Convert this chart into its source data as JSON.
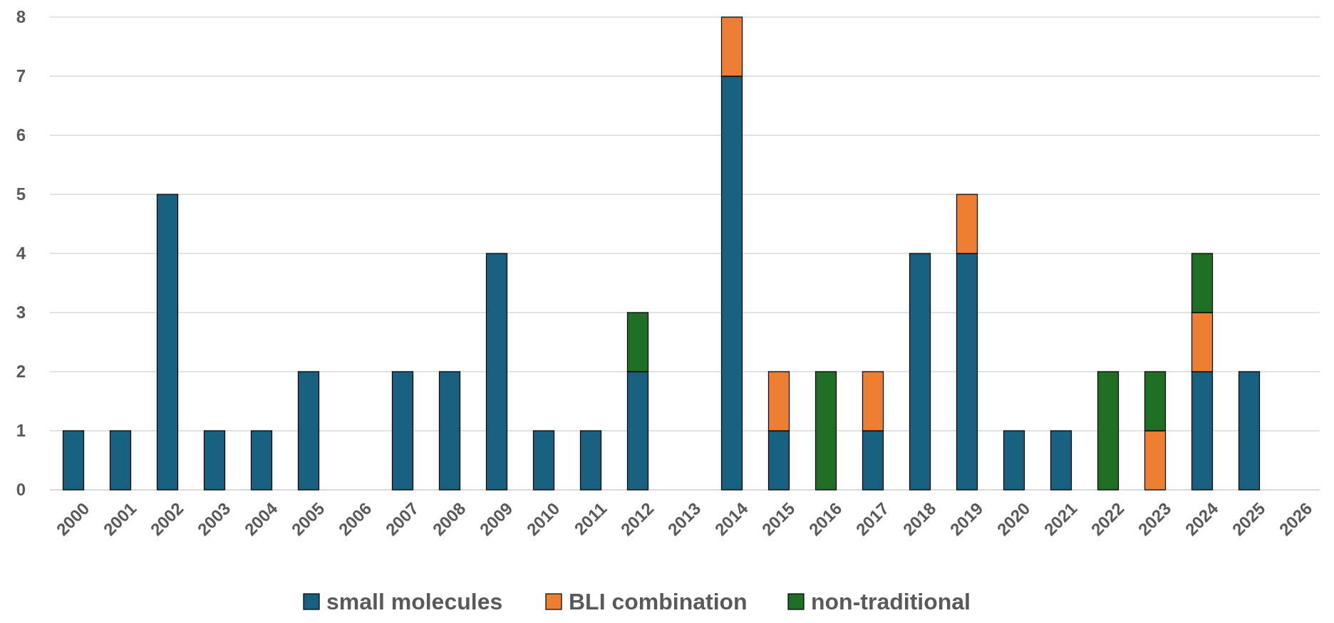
{
  "chart_data": {
    "type": "bar",
    "stacked": true,
    "categories": [
      "2000",
      "2001",
      "2002",
      "2003",
      "2004",
      "2005",
      "2006",
      "2007",
      "2008",
      "2009",
      "2010",
      "2011",
      "2012",
      "2013",
      "2014",
      "2015",
      "2016",
      "2017",
      "2018",
      "2019",
      "2020",
      "2021",
      "2022",
      "2023",
      "2024",
      "2025",
      "2026"
    ],
    "series": [
      {
        "name": "small molecules",
        "color": "#17607f",
        "values": [
          1,
          1,
          5,
          1,
          1,
          2,
          0,
          2,
          2,
          4,
          1,
          1,
          2,
          0,
          7,
          1,
          0,
          1,
          4,
          4,
          1,
          1,
          0,
          0,
          2,
          2,
          0
        ]
      },
      {
        "name": "BLI combination",
        "color": "#ed7d31",
        "values": [
          0,
          0,
          0,
          0,
          0,
          0,
          0,
          0,
          0,
          0,
          0,
          0,
          0,
          0,
          1,
          1,
          0,
          1,
          0,
          1,
          0,
          0,
          0,
          1,
          1,
          0,
          0
        ]
      },
      {
        "name": "non-traditional",
        "color": "#1e6e24",
        "values": [
          0,
          0,
          0,
          0,
          0,
          0,
          0,
          0,
          0,
          0,
          0,
          0,
          1,
          0,
          0,
          0,
          2,
          0,
          0,
          0,
          0,
          0,
          2,
          1,
          1,
          0,
          0
        ]
      }
    ],
    "ylim": [
      0,
      8
    ],
    "yticks": [
      0,
      1,
      2,
      3,
      4,
      5,
      6,
      7,
      8
    ],
    "grid": "y",
    "legend": "bottom"
  }
}
